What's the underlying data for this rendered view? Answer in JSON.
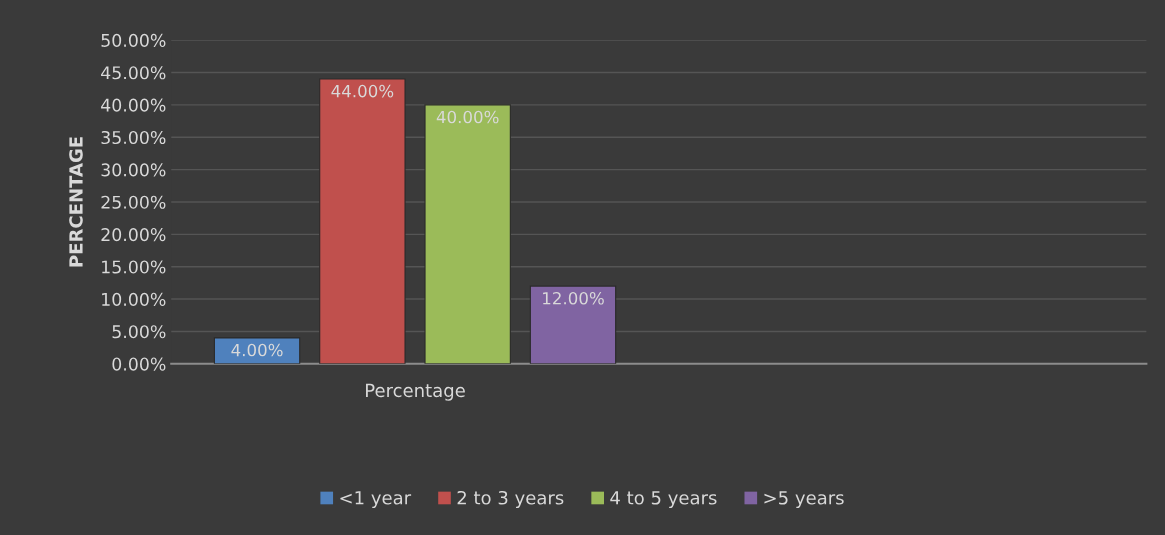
{
  "chart_data": {
    "type": "bar",
    "ylabel": "PERCENTAGE",
    "categories": [
      "Percentage",
      null
    ],
    "series": [
      {
        "name": "<1 year",
        "color": "#4f81bd",
        "values": [
          4,
          null
        ],
        "value_labels": [
          "4.00%",
          null
        ]
      },
      {
        "name": "2 to 3 years",
        "color": "#c0504d",
        "values": [
          44,
          null
        ],
        "value_labels": [
          "44.00%",
          null
        ]
      },
      {
        "name": "4 to 5 years",
        "color": "#9bbb59",
        "values": [
          40,
          null
        ],
        "value_labels": [
          "40.00%",
          null
        ]
      },
      {
        "name": ">5 years",
        "color": "#8064a2",
        "values": [
          12,
          null
        ],
        "value_labels": [
          "12.00%",
          null
        ]
      }
    ],
    "ylim": [
      0,
      50
    ],
    "yticks": [
      {
        "value": 0,
        "label": "0.00%"
      },
      {
        "value": 5,
        "label": "5.00%"
      },
      {
        "value": 10,
        "label": "10.00%"
      },
      {
        "value": 15,
        "label": "15.00%"
      },
      {
        "value": 20,
        "label": "20.00%"
      },
      {
        "value": 25,
        "label": "25.00%"
      },
      {
        "value": 30,
        "label": "30.00%"
      },
      {
        "value": 35,
        "label": "35.00%"
      },
      {
        "value": 40,
        "label": "40.00%"
      },
      {
        "value": 45,
        "label": "45.00%"
      },
      {
        "value": 50,
        "label": "50.00%"
      }
    ],
    "grid": "y",
    "legend": "bottom"
  }
}
